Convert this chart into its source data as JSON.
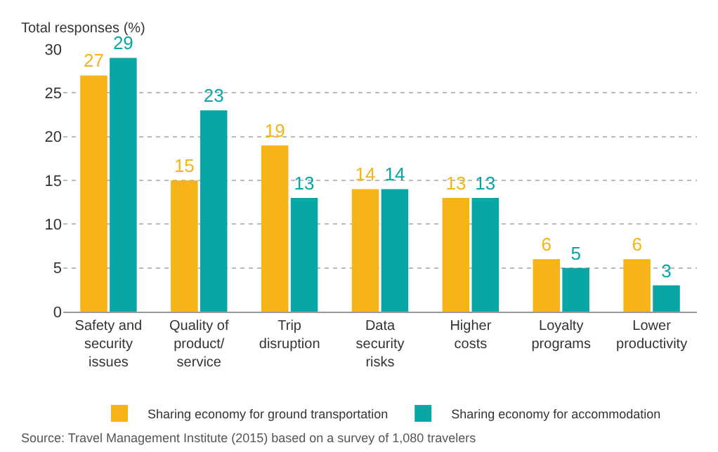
{
  "chart_data": {
    "type": "bar",
    "ylabel": "Total responses (%)",
    "categories": [
      "Safety and\nsecurity\nissues",
      "Quality of\nproduct/\nservice",
      "Trip\ndisruption",
      "Data\nsecurity\nrisks",
      "Higher\ncosts",
      "Loyalty\nprograms",
      "Lower\nproductivity"
    ],
    "series": [
      {
        "name": "Sharing economy for ground transportation",
        "color": "#f6b419",
        "values": [
          27,
          15,
          19,
          14,
          13,
          6,
          6
        ]
      },
      {
        "name": "Sharing economy for accommodation",
        "color": "#0aa5a5",
        "values": [
          29,
          23,
          13,
          14,
          13,
          5,
          3
        ]
      }
    ],
    "ylim": [
      0,
      30
    ],
    "yticks": [
      0,
      5,
      10,
      15,
      20,
      25,
      30
    ],
    "grid": "y",
    "legend": "bottom",
    "data_labels": true,
    "annotations": [
      "Source: Travel Management Institute (2015) based on a survey of 1,080 travelers"
    ]
  }
}
